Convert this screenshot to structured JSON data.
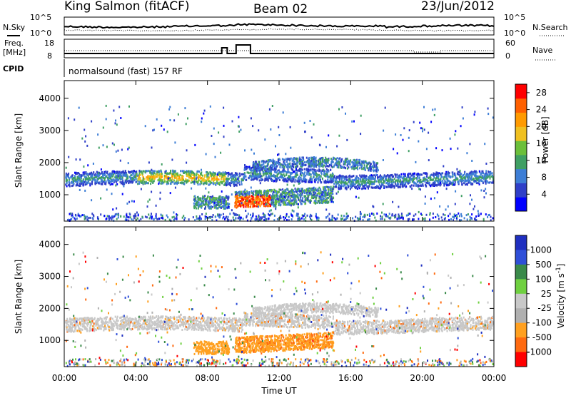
{
  "header": {
    "station": "King Salmon (fitACF)",
    "beam": "Beam 02",
    "date": "23/Jun/2012"
  },
  "noise_panel": {
    "left_label": "N.Sky",
    "right_label": "N.Search",
    "left_ticks": [
      "10^5",
      "10^0"
    ],
    "right_ticks": [
      "10^5",
      "10^0"
    ]
  },
  "freq_panel": {
    "left_label_1": "Freq.",
    "left_label_2": "[MHz]",
    "left_ticks": [
      "18",
      "8"
    ],
    "right_label": "Nave",
    "right_ticks": [
      "60",
      "0"
    ]
  },
  "cpid": {
    "label": "CPID",
    "value": "normalsound (fast) 157 RF"
  },
  "colors": {
    "power": [
      "#0000ff",
      "#2f3fc8",
      "#3d7ed6",
      "#3f9f63",
      "#6bbf3a",
      "#f0c020",
      "#ff9a00",
      "#ff6000",
      "#ff0000"
    ],
    "velocity": [
      "#1f2fc0",
      "#2f4fd8",
      "#3a8a4a",
      "#6fd040",
      "#c8c8c8",
      "#b0b0b0",
      "#ffa020",
      "#ff6a10",
      "#ff0000"
    ]
  },
  "chart_data": [
    {
      "type": "heatmap",
      "title": "",
      "ylabel": "Slant Range [km]",
      "xlabel": "",
      "y_ticks": [
        "1000",
        "2000",
        "3000",
        "4000"
      ],
      "ylim": [
        180,
        4550
      ],
      "colorbar_label": "Power [dB]",
      "colorbar_ticks": [
        "4",
        "8",
        "12",
        "16",
        "20",
        "24",
        "28"
      ],
      "colorbar_range": [
        0,
        30
      ]
    },
    {
      "type": "heatmap",
      "title": "",
      "ylabel": "Slant Range [km]",
      "xlabel": "Time UT",
      "x_ticks": [
        "00:00",
        "04:00",
        "08:00",
        "12:00",
        "16:00",
        "20:00",
        "00:00"
      ],
      "y_ticks": [
        "1000",
        "2000",
        "3000",
        "4000"
      ],
      "ylim": [
        180,
        4550
      ],
      "colorbar_label": "Velocity [m s",
      "colorbar_label_sup": "-1",
      "colorbar_label_end": "]",
      "colorbar_ticks": [
        "1000",
        "500",
        "100",
        "25",
        "-25",
        "-100",
        "-500",
        "-1000"
      ]
    }
  ]
}
